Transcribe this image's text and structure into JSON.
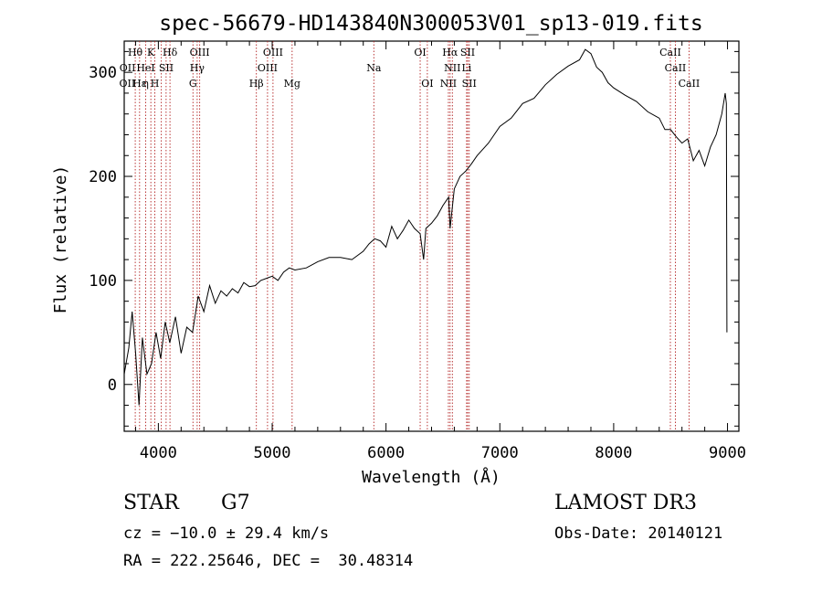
{
  "chart_data": {
    "type": "line",
    "title": "spec-56679-HD143840N300053V01_sp13-019.fits",
    "xlabel": "Wavelength (Å)",
    "ylabel": "Flux (relative)",
    "xlim": [
      3700,
      9100
    ],
    "ylim": [
      -45,
      330
    ],
    "xticks": [
      4000,
      5000,
      6000,
      7000,
      8000,
      9000
    ],
    "yticks": [
      0,
      100,
      200,
      300
    ],
    "grid": false,
    "series": [
      {
        "name": "spectrum",
        "x": [
          3700,
          3740,
          3770,
          3800,
          3830,
          3860,
          3900,
          3940,
          3980,
          4020,
          4060,
          4100,
          4150,
          4200,
          4250,
          4300,
          4350,
          4400,
          4450,
          4500,
          4550,
          4600,
          4650,
          4700,
          4750,
          4800,
          4850,
          4900,
          4950,
          5000,
          5050,
          5100,
          5150,
          5200,
          5300,
          5400,
          5500,
          5600,
          5700,
          5800,
          5850,
          5900,
          5950,
          6000,
          6050,
          6100,
          6150,
          6200,
          6250,
          6300,
          6330,
          6350,
          6400,
          6450,
          6500,
          6550,
          6563,
          6600,
          6650,
          6700,
          6750,
          6800,
          6900,
          7000,
          7100,
          7200,
          7300,
          7400,
          7500,
          7600,
          7700,
          7750,
          7800,
          7850,
          7900,
          7950,
          8000,
          8100,
          8200,
          8300,
          8400,
          8450,
          8500,
          8550,
          8600,
          8650,
          8700,
          8750,
          8800,
          8850,
          8900,
          8950,
          8980,
          8990,
          8995
        ],
        "y": [
          10,
          35,
          70,
          30,
          -20,
          45,
          10,
          20,
          50,
          25,
          60,
          40,
          65,
          30,
          55,
          50,
          85,
          70,
          95,
          78,
          90,
          85,
          92,
          88,
          98,
          94,
          95,
          100,
          102,
          104,
          100,
          108,
          112,
          110,
          112,
          118,
          122,
          122,
          120,
          128,
          135,
          140,
          138,
          132,
          152,
          140,
          148,
          158,
          150,
          145,
          120,
          150,
          155,
          162,
          172,
          180,
          150,
          188,
          200,
          205,
          212,
          220,
          232,
          248,
          256,
          270,
          275,
          288,
          298,
          306,
          312,
          322,
          318,
          305,
          300,
          290,
          285,
          278,
          272,
          262,
          256,
          245,
          245,
          238,
          232,
          236,
          215,
          225,
          210,
          228,
          240,
          260,
          280,
          270,
          50
        ]
      }
    ],
    "lines": {
      "x": [
        3797,
        3835,
        3889,
        3934,
        3969,
        4026,
        4068,
        4102,
        4304,
        4341,
        4363,
        4861,
        4959,
        5007,
        5175,
        5893,
        6300,
        6363,
        6548,
        6563,
        6583,
        6708,
        6717,
        6731,
        8498,
        8542,
        8662
      ],
      "labels": [
        {
          "text": "Hθ",
          "x": 3797,
          "row": 1
        },
        {
          "text": "K",
          "x": 3934,
          "row": 1
        },
        {
          "text": "Hδ",
          "x": 4102,
          "row": 1
        },
        {
          "text": "OIII",
          "x": 4363,
          "row": 1
        },
        {
          "text": "OIII",
          "x": 5007,
          "row": 1
        },
        {
          "text": "OI",
          "x": 6300,
          "row": 1
        },
        {
          "text": "Hα",
          "x": 6563,
          "row": 1
        },
        {
          "text": "SII",
          "x": 6717,
          "row": 1
        },
        {
          "text": "CaII",
          "x": 8498,
          "row": 1
        },
        {
          "text": "OII",
          "x": 3729,
          "row": 2
        },
        {
          "text": "HeI",
          "x": 3889,
          "row": 2
        },
        {
          "text": "SII",
          "x": 4069,
          "row": 2
        },
        {
          "text": "Hγ",
          "x": 4341,
          "row": 2
        },
        {
          "text": "OIII",
          "x": 4959,
          "row": 2
        },
        {
          "text": "Na",
          "x": 5893,
          "row": 2
        },
        {
          "text": "NII",
          "x": 6583,
          "row": 2
        },
        {
          "text": "Li",
          "x": 6708,
          "row": 2
        },
        {
          "text": "CaII",
          "x": 8542,
          "row": 2
        },
        {
          "text": "OII",
          "x": 3727,
          "row": 3
        },
        {
          "text": "Hε",
          "x": 3835,
          "row": 3
        },
        {
          "text": "η",
          "x": 3889,
          "row": 3
        },
        {
          "text": "H",
          "x": 3969,
          "row": 3
        },
        {
          "text": "G",
          "x": 4304,
          "row": 3
        },
        {
          "text": "Hβ",
          "x": 4861,
          "row": 3
        },
        {
          "text": "Mg",
          "x": 5175,
          "row": 3
        },
        {
          "text": "OI",
          "x": 6363,
          "row": 3
        },
        {
          "text": "NII",
          "x": 6548,
          "row": 3
        },
        {
          "text": "SII",
          "x": 6731,
          "row": 3
        },
        {
          "text": "CaII",
          "x": 8662,
          "row": 3
        }
      ]
    },
    "colors": {
      "spectrum": "#000000",
      "lines": "#b22222"
    }
  },
  "info": {
    "class": "STAR",
    "subclass": "G7",
    "survey": "LAMOST DR3",
    "cz": "cz = −10.0 ± 29.4 km/s",
    "obs_date": "Obs-Date: 20140121",
    "radec": "RA = 222.25646, DEC =  30.48314"
  }
}
